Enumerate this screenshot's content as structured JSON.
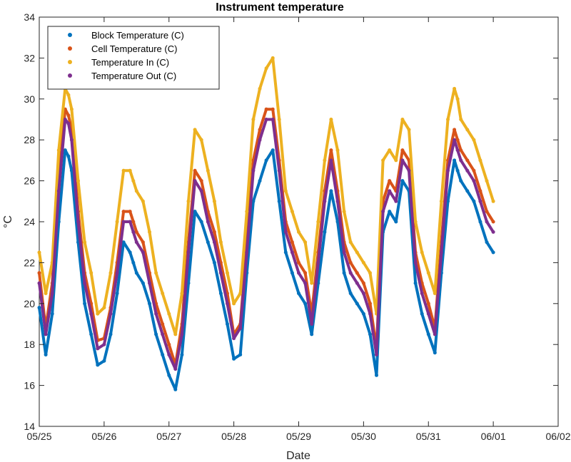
{
  "chart_data": {
    "type": "scatter",
    "title": "Instrument temperature",
    "xlabel": "Date",
    "ylabel": "°C",
    "xlim": [
      "05/25",
      "06/02"
    ],
    "x_ticks": [
      "05/25",
      "05/26",
      "05/27",
      "05/28",
      "05/29",
      "05/30",
      "05/31",
      "06/01",
      "06/02"
    ],
    "ylim": [
      14,
      34
    ],
    "y_ticks": [
      14,
      16,
      18,
      20,
      22,
      24,
      26,
      28,
      30,
      32,
      34
    ],
    "grid": false,
    "legend_position": "top-left",
    "x_unit": "days",
    "x": [
      0.0,
      0.1,
      0.2,
      0.3,
      0.4,
      0.45,
      0.5,
      0.6,
      0.7,
      0.8,
      0.9,
      1.0,
      1.1,
      1.2,
      1.3,
      1.4,
      1.45,
      1.5,
      1.6,
      1.7,
      1.8,
      1.9,
      2.0,
      2.1,
      2.2,
      2.3,
      2.4,
      2.5,
      2.6,
      2.7,
      2.8,
      2.9,
      3.0,
      3.1,
      3.2,
      3.3,
      3.4,
      3.5,
      3.6,
      3.7,
      3.8,
      3.9,
      4.0,
      4.1,
      4.2,
      4.3,
      4.4,
      4.5,
      4.6,
      4.7,
      4.8,
      4.9,
      5.0,
      5.1,
      5.2,
      5.3,
      5.4,
      5.5,
      5.6,
      5.7,
      5.8,
      5.9,
      6.0,
      6.1,
      6.2,
      6.3,
      6.4,
      6.45,
      6.5,
      6.6,
      6.7,
      6.8,
      6.9,
      7.0
    ],
    "series": [
      {
        "name": "Block Temperature (C)",
        "color": "#0072BD",
        "values": [
          19.8,
          17.5,
          19.5,
          24.0,
          27.5,
          27.2,
          26.5,
          23.0,
          20.0,
          18.5,
          17.0,
          17.2,
          18.5,
          20.5,
          23.0,
          22.5,
          22.0,
          21.5,
          21.0,
          20.0,
          18.5,
          17.5,
          16.5,
          15.8,
          17.5,
          21.0,
          24.5,
          24.0,
          23.0,
          22.0,
          20.5,
          19.0,
          17.3,
          17.5,
          21.5,
          25.0,
          26.0,
          27.0,
          27.5,
          25.0,
          22.5,
          21.5,
          20.5,
          20.0,
          18.5,
          21.0,
          23.5,
          25.5,
          24.0,
          21.5,
          20.5,
          20.0,
          19.5,
          18.5,
          16.5,
          23.5,
          24.5,
          24.0,
          26.0,
          25.5,
          21.0,
          19.5,
          18.5,
          17.6,
          21.5,
          25.0,
          27.0,
          26.5,
          26.0,
          25.5,
          25.0,
          24.0,
          23.0,
          22.5
        ]
      },
      {
        "name": "Cell Temperature (C)",
        "color": "#D95319",
        "values": [
          21.5,
          18.8,
          21.0,
          26.0,
          29.5,
          29.2,
          28.5,
          24.5,
          21.5,
          20.0,
          18.2,
          18.3,
          19.8,
          22.0,
          24.5,
          24.5,
          24.0,
          23.5,
          23.0,
          21.5,
          20.0,
          19.0,
          18.0,
          17.0,
          19.0,
          23.0,
          26.5,
          26.0,
          24.5,
          23.5,
          22.0,
          20.5,
          18.5,
          19.0,
          23.0,
          27.0,
          28.5,
          29.5,
          29.5,
          27.0,
          24.0,
          23.0,
          22.0,
          21.5,
          19.5,
          22.5,
          25.5,
          27.5,
          25.5,
          23.0,
          22.0,
          21.5,
          21.0,
          20.0,
          17.8,
          25.0,
          26.0,
          25.5,
          27.5,
          27.0,
          22.5,
          21.0,
          20.0,
          18.8,
          23.0,
          27.0,
          28.5,
          28.0,
          27.5,
          27.0,
          26.5,
          25.5,
          24.5,
          24.0
        ]
      },
      {
        "name": "Temperature In (C)",
        "color": "#EDB120",
        "values": [
          22.5,
          20.5,
          22.0,
          27.5,
          30.5,
          30.2,
          29.5,
          26.0,
          23.0,
          21.5,
          19.5,
          19.8,
          21.5,
          24.0,
          26.5,
          26.5,
          26.0,
          25.5,
          25.0,
          23.5,
          21.5,
          20.5,
          19.5,
          18.5,
          20.5,
          25.0,
          28.5,
          28.0,
          26.5,
          25.0,
          23.0,
          21.5,
          20.0,
          20.5,
          24.5,
          29.0,
          30.5,
          31.5,
          32.0,
          29.0,
          25.5,
          24.5,
          23.5,
          23.0,
          21.0,
          24.0,
          27.0,
          29.0,
          27.5,
          24.5,
          23.0,
          22.5,
          22.0,
          21.5,
          19.5,
          27.0,
          27.5,
          27.0,
          29.0,
          28.5,
          24.0,
          22.5,
          21.5,
          20.5,
          25.0,
          29.0,
          30.5,
          30.0,
          29.0,
          28.5,
          28.0,
          27.0,
          26.0,
          25.0
        ]
      },
      {
        "name": "Temperature Out (C)",
        "color": "#7E2F8E",
        "values": [
          21.0,
          18.5,
          20.5,
          25.5,
          29.0,
          28.8,
          28.0,
          24.0,
          21.0,
          19.5,
          17.8,
          18.0,
          19.5,
          21.5,
          24.0,
          24.0,
          23.5,
          23.0,
          22.5,
          21.0,
          19.5,
          18.5,
          17.5,
          16.8,
          18.5,
          22.5,
          26.0,
          25.5,
          24.0,
          23.0,
          21.5,
          20.0,
          18.3,
          18.8,
          22.5,
          26.5,
          28.0,
          29.0,
          29.0,
          26.5,
          23.5,
          22.5,
          21.5,
          21.0,
          19.0,
          22.0,
          25.0,
          27.0,
          25.0,
          22.5,
          21.5,
          21.0,
          20.5,
          19.5,
          17.5,
          24.5,
          25.5,
          25.0,
          27.0,
          26.5,
          22.0,
          20.5,
          19.5,
          18.5,
          22.5,
          26.5,
          28.0,
          27.5,
          27.0,
          26.5,
          26.0,
          25.0,
          24.0,
          23.5
        ]
      }
    ]
  }
}
